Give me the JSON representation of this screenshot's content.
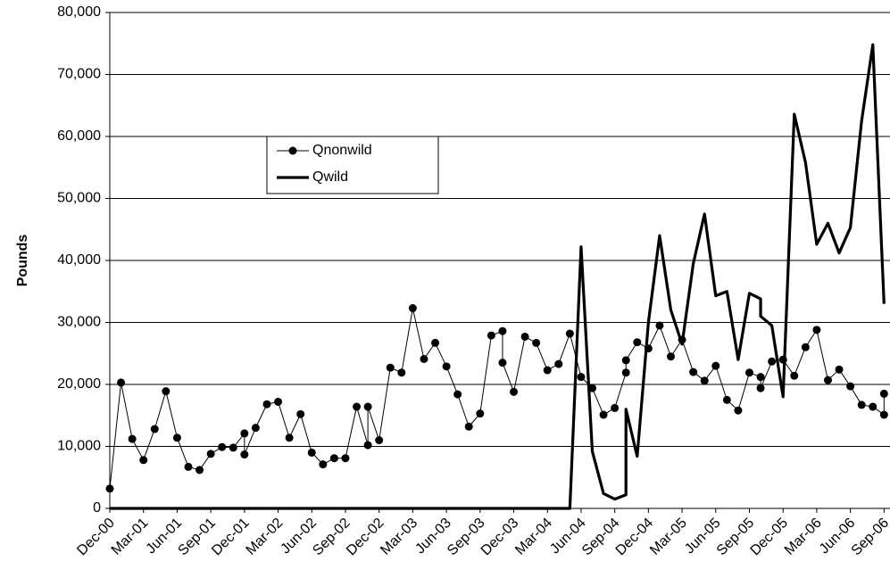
{
  "chart_data": {
    "type": "line",
    "y_label": "Pounds",
    "ylim": [
      0,
      80000
    ],
    "yticks": [
      0,
      {
        "value": 10000,
        "label": "10,000"
      },
      {
        "value": 20000,
        "label": "20,000"
      },
      {
        "value": 30000,
        "label": "30,000"
      },
      {
        "value": 40000,
        "label": "40,000"
      },
      {
        "value": 50000,
        "label": "50,000"
      },
      {
        "value": 60000,
        "label": "60,000"
      },
      {
        "value": 70000,
        "label": "70,000"
      },
      {
        "value": 80000,
        "label": "80,000"
      }
    ],
    "xticks": [
      "Dec-00",
      "Mar-01",
      "Jun-01",
      "Sep-01",
      "Dec-01",
      "Mar-02",
      "Jun-02",
      "Sep-02",
      "Dec-02",
      "Mar-03",
      "Jun-03",
      "Sep-03",
      "Dec-03",
      "Mar-04",
      "Jun-04",
      "Sep-04",
      "Dec-04",
      "Mar-05",
      "Jun-05",
      "Sep-05",
      "Dec-05",
      "Mar-06",
      "Jun-06",
      "Sep-06"
    ],
    "grid": true,
    "series": [
      {
        "name": "Qnonwild",
        "color": "#000000",
        "marker": true,
        "x": [
          "Dec-00",
          "Jan-01",
          "Feb-01",
          "Mar-01",
          "Apr-01",
          "May-01",
          "Jun-01",
          "Jul-01",
          "Aug-01",
          "Sep-01",
          "Oct-01",
          "Nov-01",
          "Dec-01",
          "Dec-01",
          "Jan-02",
          "Feb-02",
          "Mar-02",
          "Apr-02",
          "May-02",
          "Jun-02",
          "Jul-02",
          "Aug-02",
          "Sep-02",
          "Oct-02",
          "Nov-02",
          "Nov-02",
          "Dec-02",
          "Jan-03",
          "Feb-03",
          "Mar-03",
          "Apr-03",
          "May-03",
          "Jun-03",
          "Jul-03",
          "Aug-03",
          "Sep-03",
          "Oct-03",
          "Nov-03",
          "Nov-03",
          "Dec-03",
          "Jan-04",
          "Feb-04",
          "Mar-04",
          "Apr-04",
          "May-04",
          "Jun-04",
          "Jul-04",
          "Aug-04",
          "Sep-04",
          "Oct-04",
          "Oct-04",
          "Nov-04",
          "Dec-04",
          "Jan-05",
          "Feb-05",
          "Mar-05",
          "Apr-05",
          "May-05",
          "Jun-05",
          "Jul-05",
          "Aug-05",
          "Sep-05",
          "Oct-05",
          "Oct-05",
          "Nov-05",
          "Dec-05",
          "Jan-06",
          "Feb-06",
          "Mar-06",
          "Apr-06",
          "May-06",
          "Jun-06",
          "Jul-06",
          "Aug-06",
          "Sep-06",
          "Sep-06"
        ],
        "values": [
          3200,
          20300,
          11200,
          7800,
          12800,
          18900,
          11400,
          6700,
          6200,
          8800,
          9900,
          9800,
          12100,
          8700,
          13000,
          16800,
          17200,
          11400,
          15200,
          9000,
          7100,
          8100,
          8100,
          16400,
          10200,
          16400,
          11000,
          22700,
          21900,
          32300,
          24100,
          26700,
          22900,
          18400,
          13200,
          15300,
          27900,
          28600,
          23500,
          18800,
          27700,
          26700,
          22300,
          23300,
          28200,
          21200,
          19400,
          15100,
          16200,
          21900,
          23900,
          26800,
          25800,
          29500,
          24500,
          27200,
          22000,
          20600,
          23000,
          17500,
          15800,
          21900,
          21200,
          19400,
          23700,
          24000,
          21400,
          26000,
          28800,
          20700,
          22400,
          19700,
          16700,
          16400,
          15100,
          18500
        ]
      },
      {
        "name": "Qwild",
        "color": "#000000",
        "marker": false,
        "x": [
          "Dec-00",
          "Jan-01",
          "Feb-01",
          "Mar-01",
          "Apr-01",
          "May-01",
          "Jun-01",
          "Jul-01",
          "Aug-01",
          "Sep-01",
          "Oct-01",
          "Nov-01",
          "Dec-01",
          "Jan-02",
          "Feb-02",
          "Mar-02",
          "Apr-02",
          "May-02",
          "Jun-02",
          "Jul-02",
          "Aug-02",
          "Sep-02",
          "Oct-02",
          "Nov-02",
          "Dec-02",
          "Jan-03",
          "Feb-03",
          "Mar-03",
          "Apr-03",
          "May-03",
          "Jun-03",
          "Jul-03",
          "Aug-03",
          "Sep-03",
          "Oct-03",
          "Nov-03",
          "Dec-03",
          "Jan-04",
          "Feb-04",
          "Mar-04",
          "Apr-04",
          "May-04",
          "Jun-04",
          "Jul-04",
          "Aug-04",
          "Sep-04",
          "Oct-04",
          "Oct-04",
          "Nov-04",
          "Dec-04",
          "Jan-05",
          "Feb-05",
          "Mar-05",
          "Apr-05",
          "May-05",
          "Jun-05",
          "Jul-05",
          "Aug-05",
          "Sep-05",
          "Oct-05",
          "Oct-05",
          "Nov-05",
          "Dec-05",
          "Jan-06",
          "Feb-06",
          "Mar-06",
          "Apr-06",
          "May-06",
          "Jun-06",
          "Jul-06",
          "Aug-06",
          "Sep-06"
        ],
        "values": [
          0,
          0,
          0,
          0,
          0,
          0,
          0,
          0,
          0,
          0,
          0,
          0,
          0,
          0,
          0,
          0,
          0,
          0,
          0,
          0,
          0,
          0,
          0,
          0,
          0,
          0,
          0,
          0,
          0,
          0,
          0,
          0,
          0,
          0,
          0,
          0,
          0,
          0,
          0,
          0,
          0,
          0,
          42200,
          9200,
          2400,
          1500,
          2200,
          16000,
          8400,
          30000,
          44000,
          32000,
          26500,
          39500,
          47500,
          34300,
          35000,
          24000,
          34700,
          33800,
          31000,
          29500,
          18000,
          63600,
          55800,
          42600,
          46000,
          41200,
          45300,
          62500,
          74800,
          33000
        ]
      }
    ]
  }
}
